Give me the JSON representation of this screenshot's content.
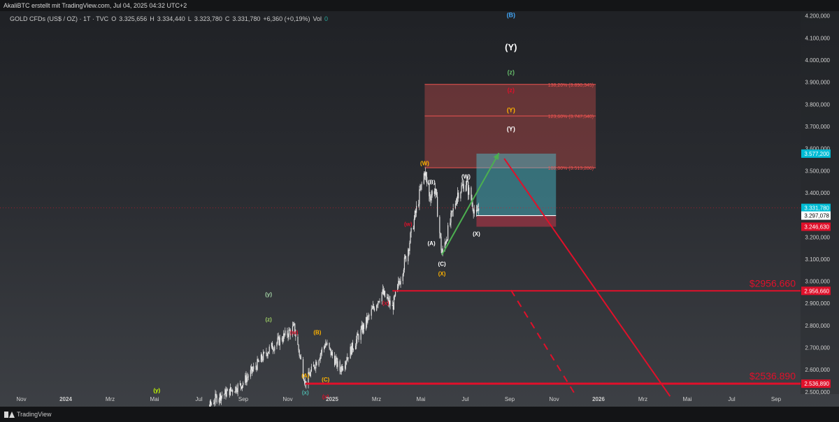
{
  "header": {
    "credit": "AkaliBTC erstellt mit TradingView.com, Jul 04, 2025 04:32 UTC+2"
  },
  "symbol": {
    "name": "GOLD CFDs (US$ / OZ) · 1T · TVC",
    "open_label": "O",
    "open": "3.325,656",
    "high_label": "H",
    "high": "3.334,440",
    "low_label": "L",
    "low": "3.323,780",
    "close_label": "C",
    "close": "3.331,780",
    "change": "+6,360 (+0,19%)",
    "vol_label": "Vol",
    "vol": "0"
  },
  "footer": {
    "brand": "TradingView"
  },
  "colors": {
    "red": "#e0102a",
    "green": "#4caf50",
    "teal": "#26a69a",
    "candle": "#e6e6e6",
    "fib": "#ef5350"
  },
  "chart_data": {
    "type": "candlestick",
    "x_axis_ticks": [
      "Nov",
      "2024",
      "Mrz",
      "Mai",
      "Jul",
      "Sep",
      "Nov",
      "2025",
      "Mrz",
      "Mai",
      "Jul",
      "Sep",
      "Nov",
      "2026",
      "Mrz",
      "Mai",
      "Jul",
      "Sep"
    ],
    "y_axis_ticks": [
      "4.200,000",
      "4.100,000",
      "4.000,000",
      "3.900,000",
      "3.800,000",
      "3.700,000",
      "3.600,000",
      "3.500,000",
      "3.400,000",
      "3.300,000",
      "3.200,000",
      "3.100,000",
      "3.000,000",
      "2.900,000",
      "2.800,000",
      "2.700,000",
      "2.600,000",
      "2.500,000"
    ],
    "y_axis_values": [
      4200,
      4100,
      4000,
      3900,
      3800,
      3700,
      3600,
      3500,
      3400,
      3300,
      3200,
      3100,
      3000,
      2900,
      2800,
      2700,
      2600,
      2500
    ],
    "ylim": [
      2490,
      4215
    ],
    "price_path": [
      [
        "2024-06-12",
        2310
      ],
      [
        "2024-07-17",
        2470
      ],
      [
        "2024-08-20",
        2530
      ],
      [
        "2024-09-26",
        2690
      ],
      [
        "2024-10-30",
        2790
      ],
      [
        "2024-11-14",
        2540
      ],
      [
        "2024-12-11",
        2720
      ],
      [
        "2024-12-30",
        2600
      ],
      [
        "2025-01-30",
        2790
      ],
      [
        "2025-02-24",
        2950
      ],
      [
        "2025-03-10",
        2880
      ],
      [
        "2025-03-31",
        3150
      ],
      [
        "2025-04-22",
        3500
      ],
      [
        "2025-04-28",
        3380
      ],
      [
        "2025-05-06",
        3420
      ],
      [
        "2025-05-15",
        3120
      ],
      [
        "2025-06-05",
        3400
      ],
      [
        "2025-06-16",
        3450
      ],
      [
        "2025-06-30",
        3290
      ],
      [
        "2025-07-03",
        3332
      ]
    ],
    "horizontal_levels": [
      {
        "value": 2956.66,
        "label": "$2956.660",
        "axis_label": "2.956,660"
      },
      {
        "value": 2536.89,
        "label": "$2536.890",
        "axis_label": "2.536,890"
      }
    ],
    "price_labels": [
      {
        "value": 3577.2,
        "label": "3.577,200",
        "color": "#00bcd4"
      },
      {
        "value": 3331.78,
        "label": "3.331,780",
        "sub": "3d 19h",
        "color": "#00bcd4"
      },
      {
        "value": 3297.078,
        "label": "3.297,078",
        "color": "#ffffff"
      },
      {
        "value": 3246.63,
        "label": "3.246,630",
        "color": "#e0102a"
      }
    ],
    "fib_levels": [
      {
        "value": 3890.345,
        "label": "138,20% (3.890,345)"
      },
      {
        "value": 3747.54,
        "label": "123,60% (3.747,540)"
      },
      {
        "value": 3513.286,
        "label": "100,00% (3.513,286)"
      }
    ],
    "wave_labels": [
      {
        "text": "(B)",
        "date": "2025-08-15",
        "value": 4195,
        "color": "#42a5f5"
      },
      {
        "text": "(Y)",
        "date": "2025-08-15",
        "value": 4045,
        "color": "#ffffff"
      },
      {
        "text": "(z)",
        "date": "2025-08-15",
        "value": 3935,
        "color": "#66bb6a"
      },
      {
        "text": "(z)",
        "date": "2025-08-15",
        "value": 3855,
        "color": "#e0102a"
      },
      {
        "text": "(Y)",
        "date": "2025-08-15",
        "value": 3765,
        "color": "#ffb300"
      },
      {
        "text": "(Y)",
        "date": "2025-08-15",
        "value": 3680,
        "color": "#ffffff"
      },
      {
        "text": "(W)",
        "date": "2025-04-22",
        "value": 3525,
        "color": "#ffb300"
      },
      {
        "text": "(B)",
        "date": "2025-05-01",
        "value": 3440,
        "color": "#ffffff"
      },
      {
        "text": "(W)",
        "date": "2025-06-16",
        "value": 3465,
        "color": "#ffffff"
      },
      {
        "text": "(w)",
        "date": "2025-03-31",
        "value": 3250,
        "color": "#e0102a"
      },
      {
        "text": "(A)",
        "date": "2025-05-01",
        "value": 3163,
        "color": "#ffffff"
      },
      {
        "text": "(X)",
        "date": "2025-06-30",
        "value": 3205,
        "color": "#ffffff"
      },
      {
        "text": "(C)",
        "date": "2025-05-15",
        "value": 3070,
        "color": "#ffffff"
      },
      {
        "text": "(X)",
        "date": "2025-05-15",
        "value": 3025,
        "color": "#ffb300"
      },
      {
        "text": "(x)",
        "date": "2025-03-01",
        "value": 2893,
        "color": "#e0102a"
      },
      {
        "text": "(y)",
        "date": "2024-09-26",
        "value": 2932,
        "color": "#a5d6a7"
      },
      {
        "text": "(z)",
        "date": "2024-09-26",
        "value": 2818,
        "color": "#9ccc65"
      },
      {
        "text": "(w)",
        "date": "2024-10-30",
        "value": 2760,
        "color": "#e0102a"
      },
      {
        "text": "(B)",
        "date": "2024-11-30",
        "value": 2760,
        "color": "#ffb300"
      },
      {
        "text": "(A)",
        "date": "2024-11-14",
        "value": 2565,
        "color": "#ffb300"
      },
      {
        "text": "(C)",
        "date": "2024-12-11",
        "value": 2547,
        "color": "#ffb300"
      },
      {
        "text": "(x)",
        "date": "2024-11-14",
        "value": 2488,
        "color": "#4db6ac"
      },
      {
        "text": "(x)",
        "date": "2024-12-11",
        "value": 2470,
        "color": "#e0102a"
      },
      {
        "text": "(y)",
        "date": "2024-04-30",
        "value": 2498,
        "color": "#c6ff00"
      }
    ],
    "projection_up": {
      "from": [
        "2025-05-15",
        3120
      ],
      "to": [
        "2025-07-30",
        3580
      ]
    },
    "projection_down": {
      "from": [
        "2025-08-06",
        3555
      ],
      "to": [
        "2026-03-15",
        2480
      ]
    },
    "projection_dashed": {
      "from": [
        "2025-08-15",
        2960
      ],
      "to": [
        "2025-11-10",
        2480
      ]
    },
    "fib_zone": {
      "from_date": "2025-04-22",
      "to_date": "2025-12-06",
      "low": 3513.286,
      "high": 3890.345
    },
    "target_box": {
      "from_date": "2025-06-30",
      "to_date": "2025-10-14",
      "low": 3297.078,
      "high": 3577.2,
      "stop": 3246.63
    }
  }
}
